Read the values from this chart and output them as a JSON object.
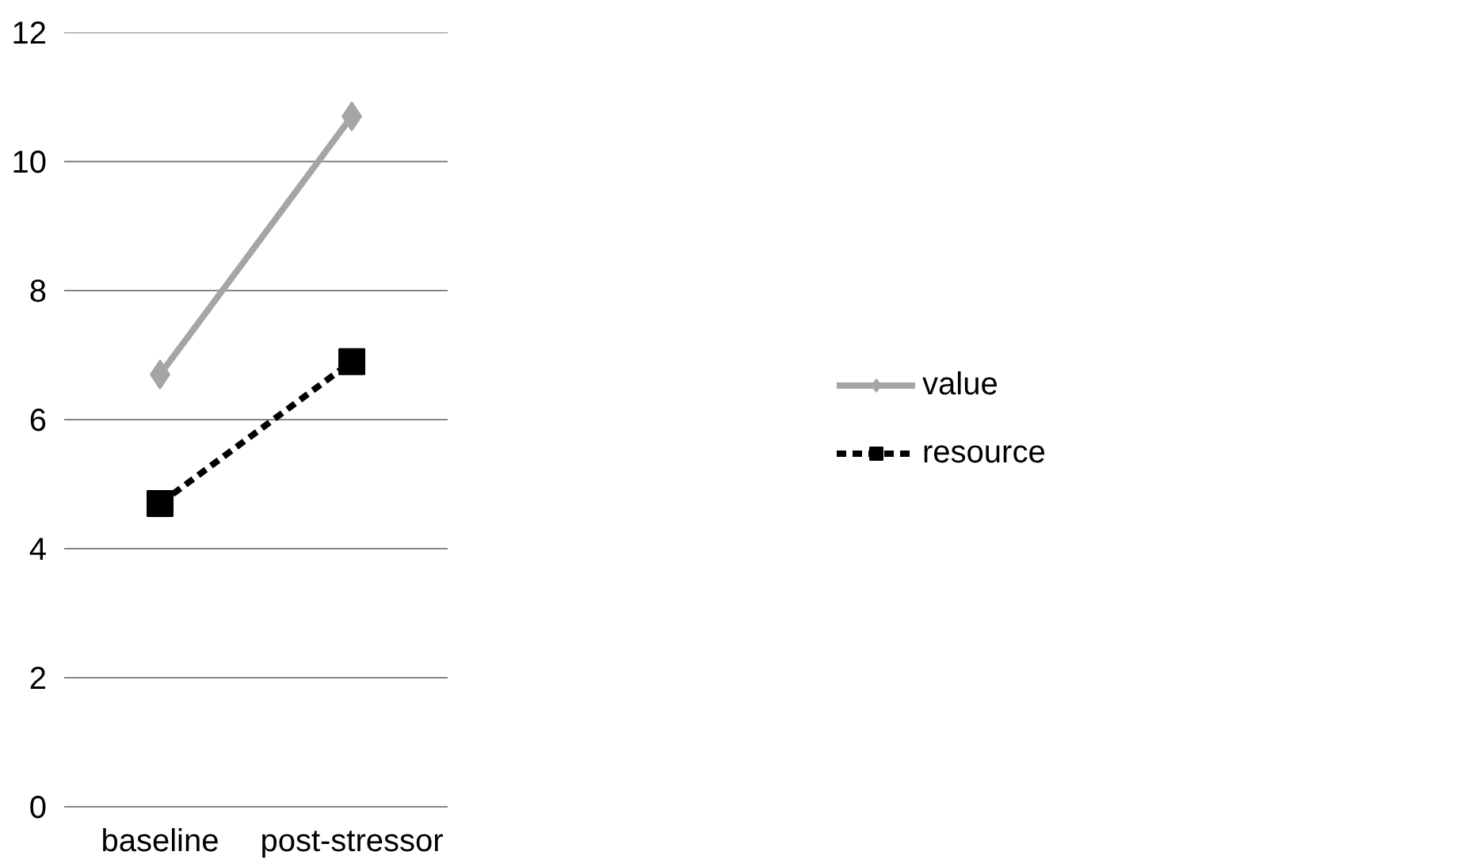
{
  "chart_data": {
    "type": "line",
    "categories": [
      "baseline",
      "post-stressor"
    ],
    "series": [
      {
        "name": "value",
        "color": "#a5a5a5",
        "values": [
          6.7,
          10.7
        ],
        "marker": "diamond",
        "line_style": "solid"
      },
      {
        "name": "resource",
        "color": "#000000",
        "values": [
          4.7,
          6.9
        ],
        "marker": "square",
        "line_style": "dashed"
      }
    ],
    "ylim": [
      0,
      12
    ],
    "yticks": [
      0,
      2,
      4,
      6,
      8,
      10,
      12
    ],
    "grid": "y",
    "legend": "right"
  }
}
